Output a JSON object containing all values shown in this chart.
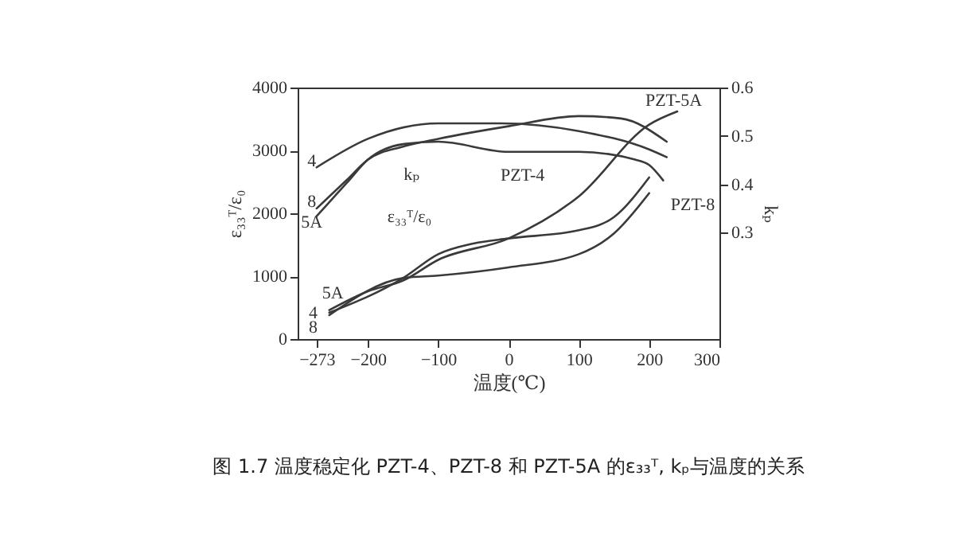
{
  "chart_data": {
    "type": "line",
    "title": "图 1.7 温度稳定化 PZT-4、PZT-8 和 PZT-5A 的ε₃₃ᵀ, kₚ与温度的关系",
    "xlabel": "温度(℃)",
    "ylabel": "ε₃₃ᵀ/ε₀",
    "y2label": "kₚ",
    "xlim": [
      -300,
      300
    ],
    "xticks": [
      -273,
      -200,
      -100,
      0,
      100,
      200,
      300
    ],
    "ylim": [
      0,
      4000
    ],
    "yticks": [
      0,
      1000,
      2000,
      3000,
      4000
    ],
    "y2lim": [
      0.08,
      0.6
    ],
    "y2ticks": [
      0.3,
      0.4,
      0.5,
      0.6
    ],
    "grid": false,
    "legend": false,
    "series": [
      {
        "color": "#3a3a3a",
        "x": [
          -255,
          -200,
          -150,
          -100,
          0,
          100,
          200,
          240
        ],
        "values": [
          460,
          760,
          930,
          1260,
          1600,
          2270,
          3410,
          3620
        ]
      },
      {
        "color": "#3a3a3a",
        "x": [
          -255,
          -150,
          -100,
          -50,
          0,
          100,
          150,
          200
        ],
        "values": [
          420,
          970,
          1350,
          1520,
          1600,
          1730,
          1940,
          2570
        ]
      },
      {
        "color": "#3a3a3a",
        "x": [
          -255,
          -150,
          -100,
          0,
          100,
          150,
          200
        ],
        "values": [
          380,
          970,
          1010,
          1140,
          1350,
          1680,
          2320
        ]
      },
      {
        "color": "#3a3a3a",
        "axis": "y2",
        "x": [
          -273,
          -200,
          -100,
          -10,
          100,
          200,
          225
        ],
        "values": [
          0.435,
          0.494,
          0.526,
          0.526,
          0.51,
          0.472,
          0.456
        ]
      },
      {
        "color": "#3a3a3a",
        "axis": "y2",
        "x": [
          -273,
          -230,
          -200,
          -150,
          -100,
          0,
          100,
          160,
          225
        ],
        "values": [
          0.35,
          0.409,
          0.451,
          0.478,
          0.494,
          0.52,
          0.541,
          0.536,
          0.488
        ]
      },
      {
        "color": "#3a3a3a",
        "axis": "y2",
        "x": [
          -273,
          -230,
          -200,
          -150,
          -100,
          0,
          100,
          180,
          200,
          220
        ],
        "values": [
          0.334,
          0.403,
          0.451,
          0.483,
          0.488,
          0.467,
          0.467,
          0.451,
          0.44,
          0.408
        ]
      }
    ],
    "annotations": [
      "4",
      "8",
      "5A",
      "5A",
      "4",
      "8",
      "PZT-5A",
      "PZT-4",
      "PZT-8",
      "kₚ",
      "ε₃₃ᵀ/ε₀"
    ]
  }
}
